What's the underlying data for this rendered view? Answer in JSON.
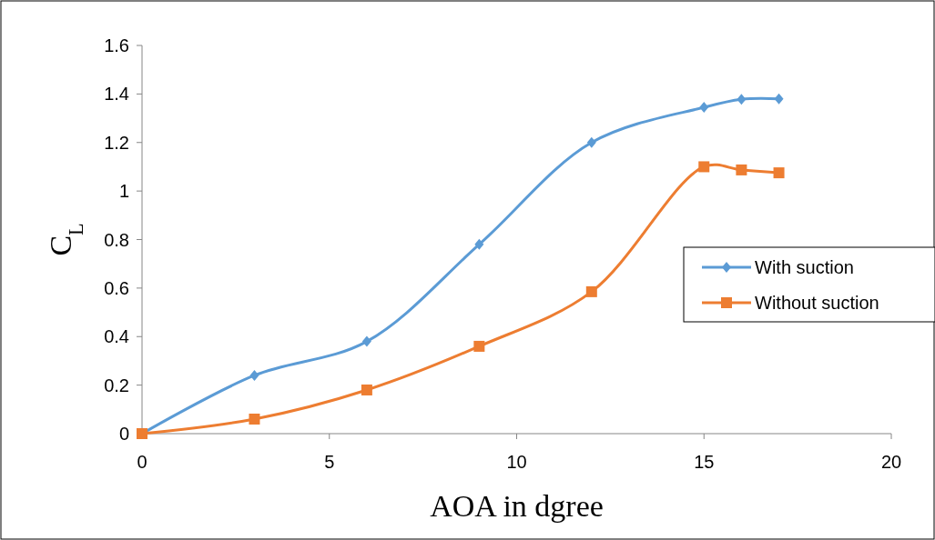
{
  "chart_data": {
    "type": "line",
    "xlabel": "AOA in dgree",
    "ylabel": "C$_{L}$",
    "x": [
      0,
      3,
      6,
      9,
      12,
      15,
      16,
      17
    ],
    "xlim": [
      0,
      20
    ],
    "xticks": [
      0,
      5,
      10,
      15,
      20
    ],
    "ylim": [
      0,
      1.6
    ],
    "yticks": [
      0,
      0.2,
      0.4,
      0.6,
      0.8,
      1,
      1.2,
      1.4,
      1.6
    ],
    "grid": false,
    "legend": "right",
    "series": [
      {
        "name": "With suction",
        "color": "#5b9bd5",
        "marker": "diamond",
        "values": [
          0,
          0.24,
          0.38,
          0.78,
          1.2,
          1.345,
          1.378,
          1.38
        ]
      },
      {
        "name": "Without suction",
        "color": "#ed7d31",
        "marker": "square",
        "values": [
          0,
          0.06,
          0.18,
          0.36,
          0.585,
          1.1,
          1.087,
          1.075
        ]
      }
    ]
  }
}
